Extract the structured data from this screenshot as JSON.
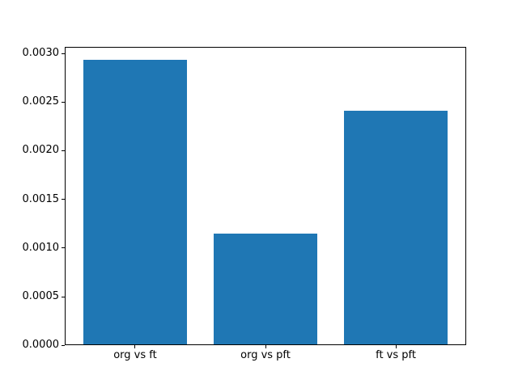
{
  "chart_data": {
    "type": "bar",
    "title": "",
    "xlabel": "",
    "ylabel": "",
    "categories": [
      "org vs ft",
      "org vs pft",
      "ft vs pft"
    ],
    "values": [
      0.00293,
      0.00115,
      0.00241
    ],
    "bar_color": "#1f77b4",
    "bar_width": 0.8,
    "xlim": [
      -0.54,
      2.54
    ],
    "ylim": [
      0,
      0.00307
    ],
    "yticks": [
      0.0,
      0.0005,
      0.001,
      0.0015,
      0.002,
      0.0025,
      0.003
    ],
    "ytick_labels": [
      "0.0000",
      "0.0005",
      "0.0010",
      "0.0015",
      "0.0020",
      "0.0025",
      "0.0030"
    ],
    "grid": false,
    "legend": null,
    "spine_color": "#000000",
    "background_color": "#ffffff"
  }
}
